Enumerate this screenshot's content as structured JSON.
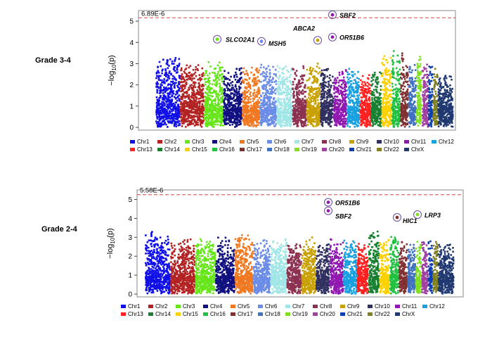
{
  "panels": [
    {
      "label": "Grade 3-4",
      "threshold_label": "6.89E-6",
      "ylabel": "-log10(p)"
    },
    {
      "label": "Grade 2-4",
      "threshold_label": "5.58E-6",
      "ylabel": "-log10(p)"
    }
  ],
  "legend": [
    {
      "name": "Chr1",
      "color": "#1010e6"
    },
    {
      "name": "Chr2",
      "color": "#b22222"
    },
    {
      "name": "Chr3",
      "color": "#66e61a"
    },
    {
      "name": "Chr4",
      "color": "#101080"
    },
    {
      "name": "Chr5",
      "color": "#f07820"
    },
    {
      "name": "Chr6",
      "color": "#6a8ce6"
    },
    {
      "name": "Chr7",
      "color": "#a0e6e6"
    },
    {
      "name": "Chr8",
      "color": "#8c3050"
    },
    {
      "name": "Chr9",
      "color": "#c8a000"
    },
    {
      "name": "Chr10",
      "color": "#303060"
    },
    {
      "name": "Chr11",
      "color": "#9018b0"
    },
    {
      "name": "Chr12",
      "color": "#18a0e0"
    },
    {
      "name": "Chr13",
      "color": "#ff2020"
    },
    {
      "name": "Chr14",
      "color": "#188030"
    },
    {
      "name": "Chr15",
      "color": "#ffd000"
    },
    {
      "name": "Chr16",
      "color": "#20c040"
    },
    {
      "name": "Chr17",
      "color": "#803030"
    },
    {
      "name": "Chr18",
      "color": "#4070c0"
    },
    {
      "name": "Chr19",
      "color": "#80e020"
    },
    {
      "name": "Chr20",
      "color": "#a040a0"
    },
    {
      "name": "Chr21",
      "color": "#1040b0"
    },
    {
      "name": "Chr22",
      "color": "#808020"
    },
    {
      "name": "ChrX",
      "color": "#203870"
    }
  ],
  "chart_data": [
    {
      "type": "scatter",
      "title": "Grade 3-4",
      "ylabel": "-log10(p)",
      "ylim": [
        0,
        5.5
      ],
      "yticks": [
        0,
        1,
        2,
        3,
        4,
        5
      ],
      "threshold": 5.16,
      "threshold_label": "6.89E-6",
      "categories": [
        "Chr1",
        "Chr2",
        "Chr3",
        "Chr4",
        "Chr5",
        "Chr6",
        "Chr7",
        "Chr8",
        "Chr9",
        "Chr10",
        "Chr11",
        "Chr12",
        "Chr13",
        "Chr14",
        "Chr15",
        "Chr16",
        "Chr17",
        "Chr18",
        "Chr19",
        "Chr20",
        "Chr21",
        "Chr22",
        "ChrX"
      ],
      "peak_by_chr": [
        3.4,
        3.1,
        3.1,
        2.9,
        3.0,
        3.0,
        3.0,
        2.9,
        3.0,
        2.9,
        2.8,
        2.8,
        2.5,
        2.7,
        3.4,
        3.6,
        3.5,
        3.0,
        3.4,
        3.0,
        2.9,
        2.8,
        2.6
      ],
      "highlights": [
        {
          "gene": "SLCO2A1",
          "chr": "Chr3",
          "y": 4.15
        },
        {
          "gene": "MSH5",
          "chr": "Chr6",
          "y": 4.05
        },
        {
          "gene": "ABCA2",
          "chr": "Chr9",
          "y": 4.1
        },
        {
          "gene": "SBF2",
          "chr": "Chr11",
          "y": 5.3
        },
        {
          "gene": "OR51B6",
          "chr": "Chr11",
          "y": 4.25
        }
      ]
    },
    {
      "type": "scatter",
      "title": "Grade 2-4",
      "ylabel": "-log10(p)",
      "ylim": [
        0,
        5.5
      ],
      "yticks": [
        0,
        1,
        2,
        3,
        4,
        5
      ],
      "threshold": 5.25,
      "threshold_label": "5.58E-6",
      "categories": [
        "Chr1",
        "Chr2",
        "Chr3",
        "Chr4",
        "Chr5",
        "Chr6",
        "Chr7",
        "Chr8",
        "Chr9",
        "Chr10",
        "Chr11",
        "Chr12",
        "Chr13",
        "Chr14",
        "Chr15",
        "Chr16",
        "Chr17",
        "Chr18",
        "Chr19",
        "Chr20",
        "Chr21",
        "Chr22",
        "ChrX"
      ],
      "peak_by_chr": [
        3.3,
        2.9,
        3.0,
        3.0,
        3.2,
        2.9,
        2.9,
        2.8,
        3.0,
        2.8,
        2.9,
        2.9,
        2.7,
        3.4,
        2.9,
        3.1,
        2.8,
        2.7,
        2.8,
        2.9,
        2.9,
        2.8,
        2.7
      ],
      "highlights": [
        {
          "gene": "OR51B6",
          "chr": "Chr11",
          "y": 4.85
        },
        {
          "gene": "SBF2",
          "chr": "Chr11",
          "y": 4.4
        },
        {
          "gene": "HIC1",
          "chr": "Chr17",
          "y": 4.05
        },
        {
          "gene": "LRP3",
          "chr": "Chr19",
          "y": 4.2
        }
      ]
    }
  ]
}
